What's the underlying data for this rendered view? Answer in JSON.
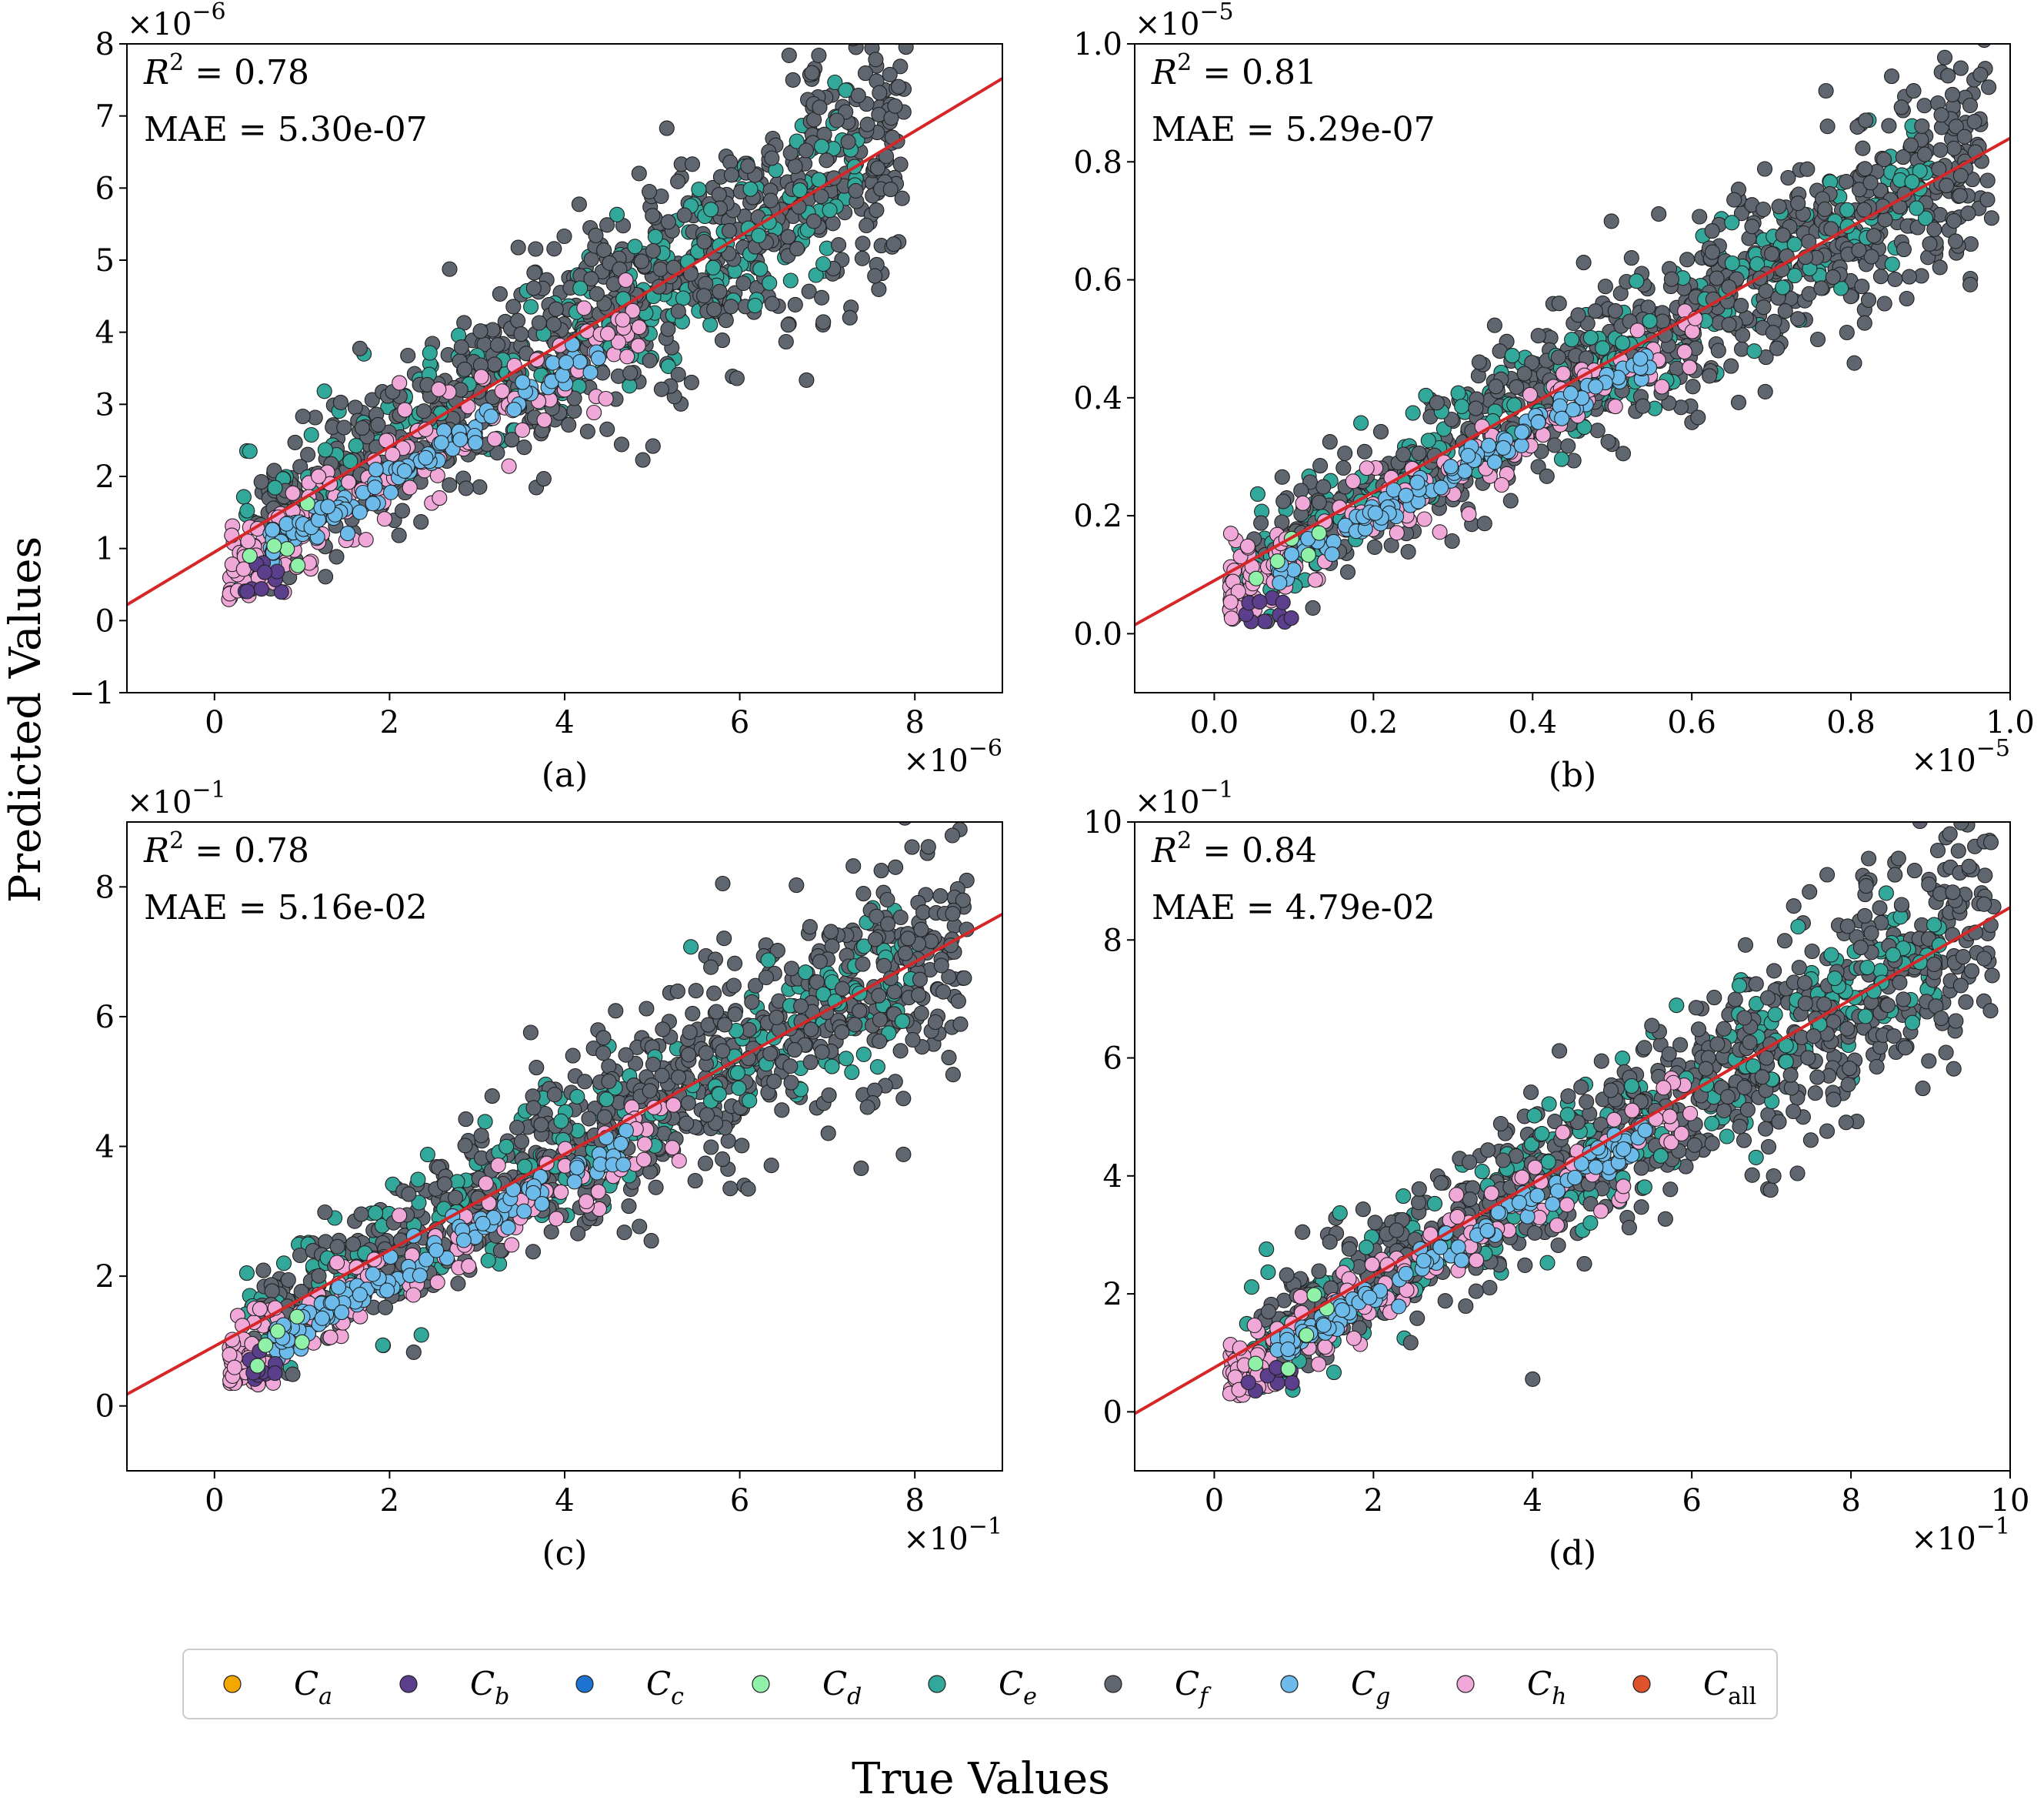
{
  "figure": {
    "ylabel": "Predicted Values",
    "xlabel": "True Values"
  },
  "legend": {
    "items": [
      {
        "base": "C",
        "sub": "a",
        "color": "#f5a700"
      },
      {
        "base": "C",
        "sub": "b",
        "color": "#5b3f8c"
      },
      {
        "base": "C",
        "sub": "c",
        "color": "#1e73d1"
      },
      {
        "base": "C",
        "sub": "d",
        "color": "#8ff2a8"
      },
      {
        "base": "C",
        "sub": "e",
        "color": "#32a89a"
      },
      {
        "base": "C",
        "sub": "f",
        "color": "#5f6670"
      },
      {
        "base": "C",
        "sub": "g",
        "color": "#6cbbea"
      },
      {
        "base": "C",
        "sub": "h",
        "color": "#f0a8d8"
      },
      {
        "base": "C",
        "sub": "all",
        "color": "#e0522a"
      }
    ]
  },
  "chart_data": [
    {
      "type": "scatter",
      "panel_label": "(a)",
      "r2_label": "R",
      "r2_sup": "2",
      "r2_text": " = 0.78",
      "mae_text": "MAE = 5.30e-07",
      "xlim": [
        -1,
        9
      ],
      "ylim": [
        -1,
        8
      ],
      "xticks": [
        0,
        2,
        4,
        6,
        8
      ],
      "xtick_labels": [
        "0",
        "2",
        "4",
        "6",
        "8"
      ],
      "yticks": [
        -1,
        0,
        1,
        2,
        3,
        4,
        5,
        6,
        7,
        8
      ],
      "ytick_labels": [
        "−1",
        "0",
        "1",
        "2",
        "3",
        "4",
        "5",
        "6",
        "7",
        "8"
      ],
      "x_offset_label": "×10",
      "x_offset_exp": "−6",
      "y_offset_label": "×10",
      "y_offset_exp": "−6",
      "fit_line": {
        "slope": 0.73,
        "intercept": 0.95
      },
      "distribution": {
        "xmax": 7.9,
        "spread": 0.75,
        "ymin": 0.35
      }
    },
    {
      "type": "scatter",
      "panel_label": "(b)",
      "r2_label": "R",
      "r2_sup": "2",
      "r2_text": " = 0.81",
      "mae_text": "MAE = 5.29e-07",
      "xlim": [
        -0.1,
        1.0
      ],
      "ylim": [
        -0.1,
        1.0
      ],
      "xticks": [
        0.0,
        0.2,
        0.4,
        0.6,
        0.8,
        1.0
      ],
      "xtick_labels": [
        "0.0",
        "0.2",
        "0.4",
        "0.6",
        "0.8",
        "1.0"
      ],
      "yticks": [
        0.0,
        0.2,
        0.4,
        0.6,
        0.8,
        1.0
      ],
      "ytick_labels": [
        "0.0",
        "0.2",
        "0.4",
        "0.6",
        "0.8",
        "1.0"
      ],
      "x_offset_label": "×10",
      "x_offset_exp": "−5",
      "y_offset_label": "×10",
      "y_offset_exp": "−5",
      "fit_line": {
        "slope": 0.75,
        "intercept": 0.09
      },
      "distribution": {
        "xmax": 0.98,
        "spread": 0.075,
        "ymin": 0.02
      }
    },
    {
      "type": "scatter",
      "panel_label": "(c)",
      "r2_label": "R",
      "r2_sup": "2",
      "r2_text": " = 0.78",
      "mae_text": "MAE = 5.16e-02",
      "xlim": [
        -1,
        9
      ],
      "ylim": [
        -1,
        9
      ],
      "xticks": [
        0,
        2,
        4,
        6,
        8
      ],
      "xtick_labels": [
        "0",
        "2",
        "4",
        "6",
        "8"
      ],
      "yticks": [
        0,
        2,
        4,
        6,
        8
      ],
      "ytick_labels": [
        "0",
        "2",
        "4",
        "6",
        "8"
      ],
      "x_offset_label": "×10",
      "x_offset_exp": "−1",
      "y_offset_label": "×10",
      "y_offset_exp": "−1",
      "fit_line": {
        "slope": 0.74,
        "intercept": 0.92
      },
      "distribution": {
        "xmax": 8.6,
        "spread": 0.75,
        "ymin": 0.4
      }
    },
    {
      "type": "scatter",
      "panel_label": "(d)",
      "r2_label": "R",
      "r2_sup": "2",
      "r2_text": " = 0.84",
      "mae_text": "MAE = 4.79e-02",
      "xlim": [
        -1,
        10
      ],
      "ylim": [
        -1,
        10
      ],
      "xticks": [
        0,
        2,
        4,
        6,
        8,
        10
      ],
      "xtick_labels": [
        "0",
        "2",
        "4",
        "6",
        "8",
        "10"
      ],
      "yticks": [
        0,
        2,
        4,
        6,
        8,
        10
      ],
      "ytick_labels": [
        "0",
        "2",
        "4",
        "6",
        "8",
        "10"
      ],
      "x_offset_label": "×10",
      "x_offset_exp": "−1",
      "y_offset_label": "×10",
      "y_offset_exp": "−1",
      "fit_line": {
        "slope": 0.78,
        "intercept": 0.75
      },
      "distribution": {
        "xmax": 9.8,
        "spread": 0.8,
        "ymin": 0.3
      }
    }
  ]
}
